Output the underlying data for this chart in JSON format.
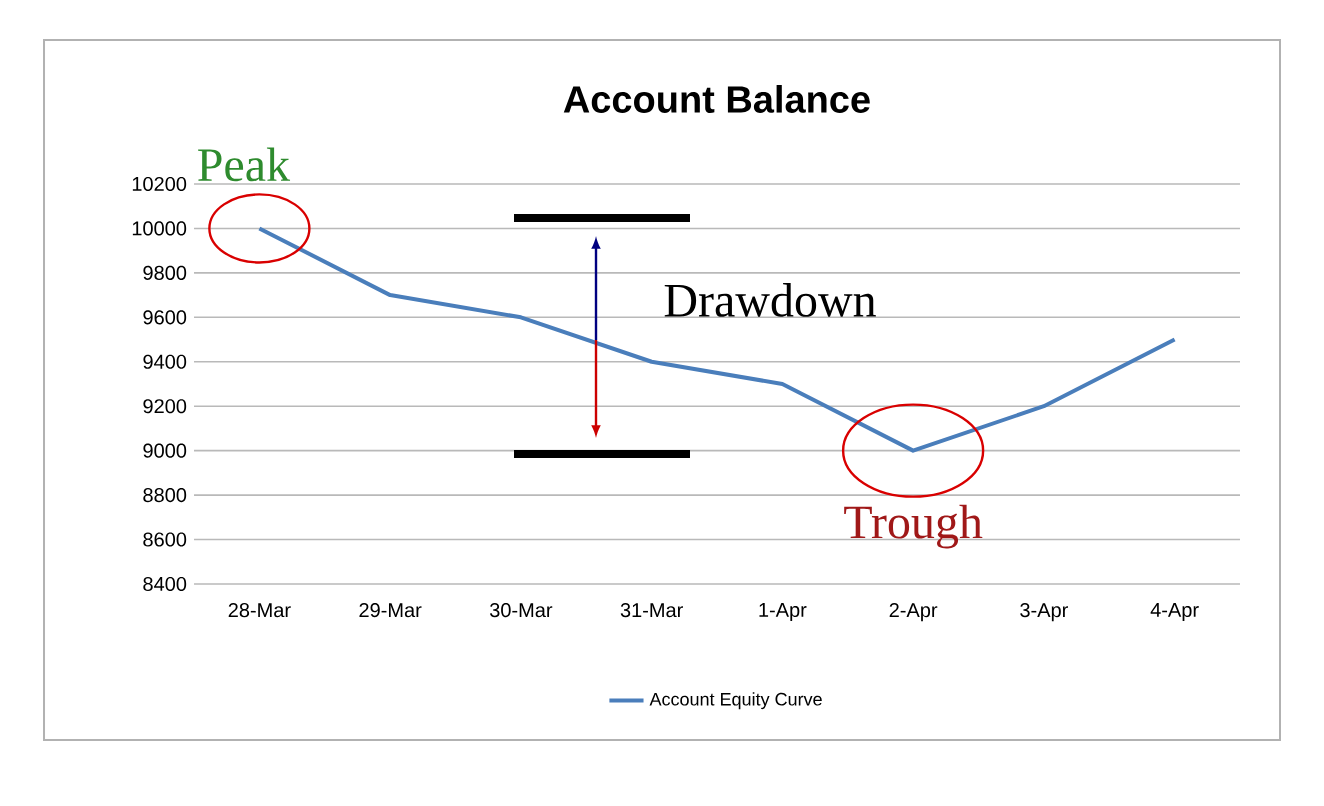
{
  "chart_data": {
    "type": "line",
    "title": "Account Balance",
    "categories": [
      "28-Mar",
      "29-Mar",
      "30-Mar",
      "31-Mar",
      "1-Apr",
      "2-Apr",
      "3-Apr",
      "4-Apr"
    ],
    "series": [
      {
        "name": "Account Equity Curve",
        "color": "#4a7ebb",
        "values": [
          10000,
          9700,
          9600,
          9400,
          9300,
          9000,
          9200,
          9500
        ]
      }
    ],
    "ylim": [
      8400,
      10200
    ],
    "yticks": [
      8400,
      8600,
      8800,
      9000,
      9200,
      9400,
      9600,
      9800,
      10000,
      10200
    ],
    "grid": "y",
    "legend": "bottom",
    "marker": "none",
    "line_style": "solid",
    "annotations": [
      {
        "text": "Peak",
        "x": "28-Mar",
        "y": 10000
      },
      {
        "text": "Trough",
        "x": "2-Apr",
        "y": 9000
      },
      "Drawdown"
    ]
  }
}
